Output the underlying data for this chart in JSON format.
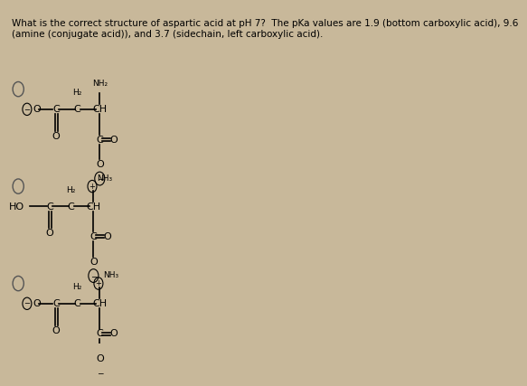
{
  "title_text": "What is the correct structure of aspartic acid at pH 7?  The pKa values are 1.9 (bottom carboxylic acid), 9.6\n(amine (conjugate acid)), and 3.7 (sidechain, left carboxylic acid).",
  "bg_color": "#c8b89a",
  "text_color": "#000000"
}
